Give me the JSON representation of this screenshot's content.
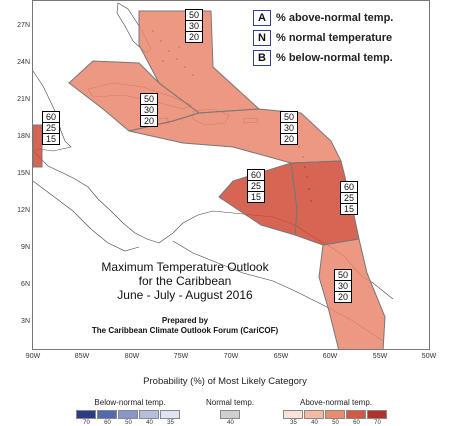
{
  "legend": {
    "items": [
      {
        "letter": "A",
        "text": "% above-normal temp."
      },
      {
        "letter": "N",
        "text": "% normal temperature"
      },
      {
        "letter": "B",
        "text": "% below-normal temp."
      }
    ]
  },
  "title": {
    "line1": "Maximum Temperature Outlook",
    "line2": "for the Caribbean",
    "line3": "June - July - August 2016"
  },
  "prepared": {
    "line1": "Prepared by",
    "line2": "The Caribbean Climate Outlook Forum (CariCOF)"
  },
  "latitude_labels": [
    "27N",
    "24N",
    "21N",
    "18N",
    "15N",
    "12N",
    "9N",
    "6N",
    "3N"
  ],
  "longitude_labels": [
    "90W",
    "85W",
    "80W",
    "75W",
    "70W",
    "65W",
    "60W",
    "55W",
    "50W"
  ],
  "regions": [
    {
      "id": "bahamas",
      "probs": [
        "50",
        "30",
        "20"
      ],
      "color": "#e9866c"
    },
    {
      "id": "greater-antilles",
      "probs": [
        "50",
        "30",
        "20"
      ],
      "color": "#e9866c"
    },
    {
      "id": "west-caribbean",
      "probs": [
        "60",
        "25",
        "15"
      ],
      "color": "#cf4b35"
    },
    {
      "id": "lesser-antilles-north",
      "probs": [
        "50",
        "30",
        "20"
      ],
      "color": "#e9866c"
    },
    {
      "id": "south-caribbean",
      "probs": [
        "60",
        "25",
        "15"
      ],
      "color": "#cf4b35"
    },
    {
      "id": "eastern-caribbean",
      "probs": [
        "60",
        "25",
        "15"
      ],
      "color": "#cf4b35"
    },
    {
      "id": "guianas",
      "probs": [
        "50",
        "30",
        "20"
      ],
      "color": "#e9866c"
    }
  ],
  "scale": {
    "title": "Probability (%) of Most Likely Category",
    "below_label": "Below-normal temp.",
    "normal_label": "Normal temp.",
    "above_label": "Above-normal temp.",
    "below_colors": [
      "#2b3b86",
      "#5469ab",
      "#8797c9",
      "#b4bfe0",
      "#dfe4f3"
    ],
    "normal_colors": [
      "#cfcfcf"
    ],
    "above_colors": [
      "#fbe2d8",
      "#f5b9a4",
      "#ea8a6f",
      "#d25a43",
      "#b03228"
    ],
    "below_values": [
      "70",
      "60",
      "50",
      "40",
      "35"
    ],
    "normal_values": [
      "40"
    ],
    "above_values": [
      "35",
      "40",
      "50",
      "60",
      "70"
    ]
  }
}
